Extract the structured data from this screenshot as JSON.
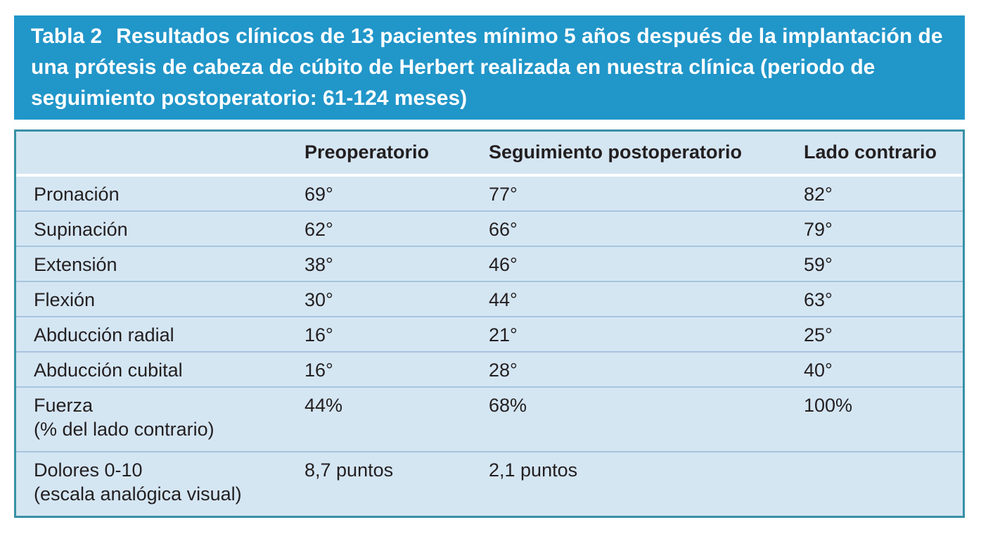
{
  "table": {
    "caption_label": "Tabla 2",
    "caption_text": "Resultados clínicos de 13 pacientes mínimo 5 años después de la implantación de una prótesis de cabeza de cúbito de Herbert realizada en nuestra clínica (periodo de seguimiento postoperatorio: 61-124 meses)",
    "columns": {
      "c2": "Preoperatorio",
      "c3": "Seguimiento postoperatorio",
      "c4": "Lado contrario"
    },
    "rows": [
      {
        "label": "Pronación",
        "preop": "69°",
        "followup": "77°",
        "contralateral": "82°"
      },
      {
        "label": "Supinación",
        "preop": "62°",
        "followup": "66°",
        "contralateral": "79°"
      },
      {
        "label": "Extensión",
        "preop": "38°",
        "followup": "46°",
        "contralateral": "59°"
      },
      {
        "label": "Flexión",
        "preop": "30°",
        "followup": "44°",
        "contralateral": "63°"
      },
      {
        "label": "Abducción radial",
        "preop": "16°",
        "followup": "21°",
        "contralateral": "25°"
      },
      {
        "label": "Abducción cubital",
        "preop": "16°",
        "followup": "28°",
        "contralateral": "40°"
      },
      {
        "label": "Fuerza",
        "sublabel": "(% del lado contrario)",
        "preop": "44%",
        "followup": "68%",
        "contralateral": "100%"
      },
      {
        "label": "Dolores 0-10",
        "sublabel": "(escala analógica visual)",
        "preop": "8,7 puntos",
        "followup": "2,1 puntos",
        "contralateral": ""
      }
    ],
    "colors": {
      "caption_background": "#2196c9",
      "caption_text": "#ffffff",
      "body_background": "#d5e6f3",
      "outer_border": "#3790a6",
      "row_separator": "#a6c4de",
      "text": "#231f20"
    }
  }
}
